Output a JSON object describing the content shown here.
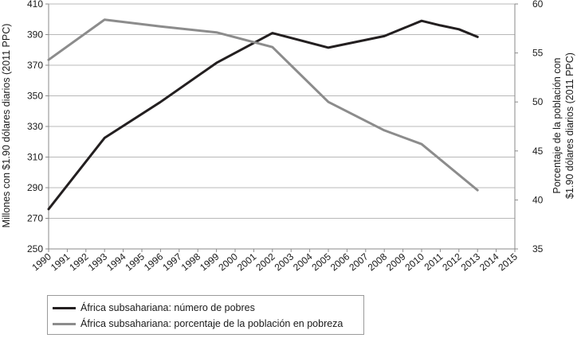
{
  "chart_data": {
    "type": "line",
    "title": "",
    "x": [
      "1990",
      "1991",
      "1992",
      "1993",
      "1994",
      "1995",
      "1996",
      "1997",
      "1998",
      "1999",
      "2000",
      "2001",
      "2002",
      "2003",
      "2004",
      "2005",
      "2006",
      "2007",
      "2008",
      "2009",
      "2010",
      "2011",
      "2012",
      "2013",
      "2014",
      "2015"
    ],
    "y_left": {
      "label": "Millones con $1.90 dólares diarios (2011 PPC)",
      "ylim": [
        250,
        410
      ],
      "ticks": [
        250,
        270,
        290,
        310,
        330,
        350,
        370,
        390,
        410
      ]
    },
    "y_right": {
      "label_line1": "Porcentaje de la población con",
      "label_line2": "$1.90 dólares diarios (2011 PPC)",
      "ylim": [
        35,
        60
      ],
      "ticks": [
        35,
        40,
        45,
        50,
        55,
        60
      ]
    },
    "series": [
      {
        "name": "África subsahariana: número de pobres",
        "axis": "left",
        "color": "#231f20",
        "points": [
          [
            1990,
            276
          ],
          [
            1993,
            322.5
          ],
          [
            1996,
            346
          ],
          [
            1999,
            371.5
          ],
          [
            2002,
            391
          ],
          [
            2005,
            381.5
          ],
          [
            2008,
            389
          ],
          [
            2010,
            399
          ],
          [
            2011,
            396
          ],
          [
            2012,
            393.5
          ],
          [
            2013,
            388.5
          ]
        ]
      },
      {
        "name": "África subsahariana: porcentaje de la población en pobreza",
        "axis": "right",
        "color": "#8c8c8c",
        "points": [
          [
            1990,
            54.3
          ],
          [
            1993,
            58.4
          ],
          [
            1996,
            57.7
          ],
          [
            1999,
            57.1
          ],
          [
            2002,
            55.6
          ],
          [
            2005,
            50.0
          ],
          [
            2008,
            47.1
          ],
          [
            2010,
            45.7
          ],
          [
            2013,
            41.0
          ]
        ]
      }
    ],
    "grid": "horizontal",
    "legend_position": "bottom-left"
  }
}
